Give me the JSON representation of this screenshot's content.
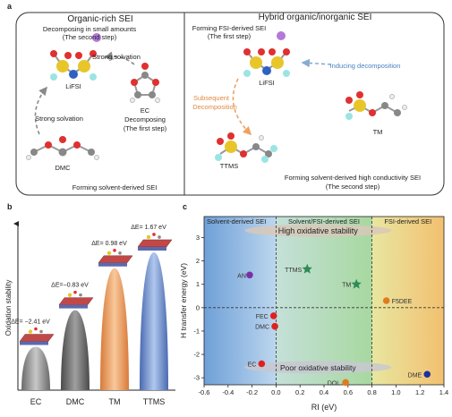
{
  "panel_a": {
    "letter": "a",
    "left": {
      "title": "Organic-rich SEI",
      "decomposing_small": "Decomposing in small amounts",
      "second_step": "(The second step)",
      "strong_solvation_top": "Strong solvation",
      "strong_solvation_left": "Strong solvation",
      "lifsi": "LiFSI",
      "ec_label": "EC",
      "ec_decomposing": "Decomposing",
      "ec_first_step": "(The first step)",
      "dmc": "DMC",
      "footer": "Forming solvent-derived SEI"
    },
    "right": {
      "title": "Hybrid organic/inorganic SEI",
      "forming_fsi": "Forming FSI-derived SEI",
      "first_step": "(The first step)",
      "lifsi": "LiFSI",
      "inducing": "Inducing decomposition",
      "subsequent": "Subsequent",
      "decomposition": "Decomposition",
      "tm": "TM",
      "ttms": "TTMS",
      "forming_high": "Forming solvent-derived high conductivity SEI",
      "second_step": "(The second step)"
    }
  },
  "panel_b": {
    "letter": "b",
    "ylabel": "Oxidation stability",
    "colors": [
      "#9a9a9a",
      "#6e6e6e",
      "#f2a56b",
      "#7f9fd6"
    ],
    "chart_data": {
      "type": "bar",
      "categories": [
        "EC",
        "DMC",
        "TM",
        "TTMS"
      ],
      "values": [
        -2.41,
        -0.83,
        0.98,
        1.67
      ],
      "value_labels": [
        "ΔE= −2.41 eV",
        "ΔE=−0.83 eV",
        "ΔE= 0.98 eV",
        "ΔE= 1.67 eV"
      ],
      "ylabel": "Oxidation stability"
    }
  },
  "panel_c": {
    "letter": "c",
    "regions": [
      "Solvent-derived SEI",
      "Solvent/FSI-derived SEI",
      "FSI-derived SEI"
    ],
    "high_label": "High  oxidative stability",
    "poor_label": "Poor oxidative stability",
    "chart_data": {
      "type": "scatter",
      "xlabel": "RI (eV)",
      "ylabel": "H transfer energy (eV)",
      "xlim": [
        -0.6,
        1.4
      ],
      "ylim": [
        -3.3,
        3.9
      ],
      "xticks": [
        -0.6,
        -0.4,
        -0.2,
        0.0,
        0.2,
        0.4,
        0.6,
        0.8,
        1.0,
        1.2,
        1.4
      ],
      "yticks": [
        -3,
        -2,
        -1,
        0,
        1,
        2,
        3
      ],
      "xtick_labels": [
        "-0.6",
        "-0.4",
        "-0.2",
        "0.0",
        "0.2",
        "0.4",
        "0.6",
        "0.8",
        "1.0",
        "1.2",
        "1.4"
      ],
      "ytick_labels": [
        "-3",
        "-2",
        "-1",
        "0",
        "1",
        "2",
        "3"
      ],
      "dashed_v": [
        0.0,
        0.8
      ],
      "dashed_h": [
        0.0
      ],
      "points": [
        {
          "label": "AN",
          "x": -0.22,
          "y": 1.4,
          "color": "#7b2fa6",
          "shape": "circle"
        },
        {
          "label": "TTMS",
          "x": 0.26,
          "y": 1.65,
          "color": "#2e8b57",
          "shape": "star"
        },
        {
          "label": "TM",
          "x": 0.67,
          "y": 1.0,
          "color": "#2e8b57",
          "shape": "star"
        },
        {
          "label": "F5DEE",
          "x": 0.92,
          "y": 0.3,
          "color": "#e07b20",
          "shape": "circle"
        },
        {
          "label": "FEC",
          "x": -0.02,
          "y": -0.35,
          "color": "#e02020",
          "shape": "circle"
        },
        {
          "label": "DMC",
          "x": -0.01,
          "y": -0.8,
          "color": "#e02020",
          "shape": "circle"
        },
        {
          "label": "EC",
          "x": -0.12,
          "y": -2.4,
          "color": "#e02020",
          "shape": "circle"
        },
        {
          "label": "DOL",
          "x": 0.58,
          "y": -3.2,
          "color": "#e07b20",
          "shape": "circle"
        },
        {
          "label": "DME",
          "x": 1.26,
          "y": -2.85,
          "color": "#1f2fa0",
          "shape": "circle"
        }
      ]
    }
  }
}
